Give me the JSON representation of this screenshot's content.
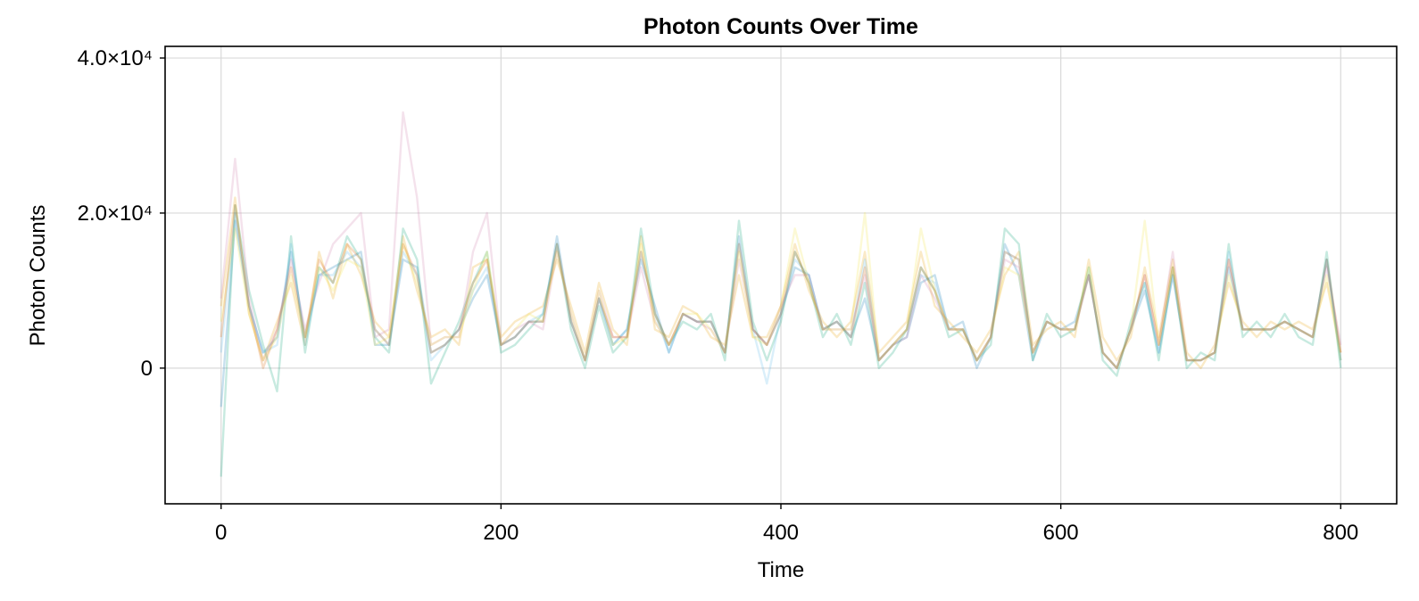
{
  "chart_data": {
    "type": "line",
    "title": "Photon Counts Over Time",
    "xlabel": "Time",
    "ylabel": "Photon Counts",
    "xlim": [
      -40,
      840
    ],
    "ylim": [
      -17500,
      41500
    ],
    "xticks": [
      {
        "value": 0,
        "label": "0"
      },
      {
        "value": 200,
        "label": "200"
      },
      {
        "value": 400,
        "label": "400"
      },
      {
        "value": 600,
        "label": "600"
      },
      {
        "value": 800,
        "label": "800"
      }
    ],
    "yticks": [
      {
        "value": 0,
        "label": "0"
      },
      {
        "value": 20000,
        "label": "2.0×10⁴"
      },
      {
        "value": 40000,
        "label": "4.0×10⁴"
      }
    ],
    "grid": true,
    "legend": "none",
    "series_colors": [
      "#0072b2",
      "#e69f00",
      "#009e73",
      "#cc79a7",
      "#56b4e9",
      "#f0e442",
      "#d55e00"
    ],
    "series_opacity": 0.22,
    "x": [
      0,
      10,
      20,
      30,
      40,
      50,
      60,
      70,
      80,
      90,
      100,
      110,
      120,
      130,
      140,
      150,
      160,
      170,
      180,
      190,
      200,
      210,
      220,
      230,
      240,
      250,
      260,
      270,
      280,
      290,
      300,
      310,
      320,
      330,
      340,
      350,
      360,
      370,
      380,
      390,
      400,
      410,
      420,
      430,
      440,
      450,
      460,
      470,
      480,
      490,
      500,
      510,
      520,
      530,
      540,
      550,
      560,
      570,
      580,
      590,
      600,
      610,
      620,
      630,
      640,
      650,
      660,
      670,
      680,
      690,
      700,
      710,
      720,
      730,
      740,
      750,
      760,
      770,
      780,
      790,
      800
    ],
    "series": [
      {
        "values": [
          -5000,
          19000,
          8000,
          2000,
          4000,
          15000,
          4000,
          12000,
          13000,
          14000,
          15000,
          3000,
          3000,
          14000,
          13000,
          2000,
          3000,
          5000,
          9000,
          12000,
          3000,
          4000,
          6000,
          6000,
          17000,
          6000,
          1000,
          9000,
          3000,
          5000,
          14000,
          8000,
          2000,
          7000,
          6000,
          6000,
          2000,
          17000,
          5000,
          3000,
          7000,
          13000,
          12000,
          5000,
          6000,
          4000,
          9000,
          1000,
          3000,
          4000,
          11000,
          12000,
          5000,
          6000,
          0,
          4000,
          16000,
          12000,
          1000,
          6000,
          5000,
          6000,
          12000,
          2000,
          0,
          5000,
          10000,
          2000,
          12000,
          1000,
          1000,
          2000,
          13000,
          5000,
          5000,
          5000,
          6000,
          5000,
          4000,
          14000,
          1000
        ]
      },
      {
        "values": [
          8000,
          22000,
          7000,
          1000,
          6000,
          11000,
          3000,
          15000,
          9000,
          16000,
          12000,
          6000,
          4000,
          17000,
          10000,
          4000,
          5000,
          3000,
          13000,
          14000,
          4000,
          6000,
          7000,
          8000,
          14000,
          8000,
          2000,
          11000,
          5000,
          3000,
          17000,
          5000,
          4000,
          8000,
          7000,
          4000,
          3000,
          12000,
          4000,
          4000,
          8000,
          16000,
          10000,
          6000,
          4000,
          6000,
          15000,
          2000,
          4000,
          6000,
          15000,
          8000,
          6000,
          4000,
          2000,
          5000,
          12000,
          15000,
          3000,
          5000,
          6000,
          4000,
          14000,
          4000,
          1000,
          4000,
          13000,
          4000,
          14000,
          2000,
          0,
          3000,
          11000,
          6000,
          4000,
          6000,
          5000,
          6000,
          5000,
          11000,
          2000
        ]
      },
      {
        "values": [
          -14000,
          21000,
          10000,
          3000,
          -3000,
          17000,
          2000,
          13000,
          11000,
          17000,
          14000,
          4000,
          2000,
          18000,
          14000,
          -2000,
          2000,
          6000,
          11000,
          15000,
          2000,
          3000,
          5000,
          7000,
          16000,
          5000,
          0,
          8000,
          2000,
          4000,
          18000,
          7000,
          3000,
          6000,
          5000,
          7000,
          1000,
          19000,
          6000,
          1000,
          6000,
          15000,
          11000,
          4000,
          7000,
          3000,
          11000,
          0,
          2000,
          5000,
          13000,
          10000,
          4000,
          5000,
          1000,
          3000,
          18000,
          16000,
          1000,
          7000,
          4000,
          5000,
          13000,
          1000,
          -1000,
          6000,
          11000,
          1000,
          13000,
          0,
          2000,
          1000,
          16000,
          4000,
          6000,
          4000,
          7000,
          4000,
          3000,
          15000,
          0
        ]
      },
      {
        "values": [
          9000,
          27000,
          9000,
          1000,
          5000,
          14000,
          5000,
          11000,
          16000,
          18000,
          20000,
          4000,
          5000,
          33000,
          22000,
          3000,
          4000,
          4000,
          15000,
          20000,
          3000,
          5000,
          6000,
          5000,
          15000,
          7000,
          1000,
          10000,
          4000,
          4000,
          13000,
          6000,
          3000,
          7000,
          6000,
          5000,
          2000,
          14000,
          5000,
          3000,
          8000,
          12000,
          12000,
          5000,
          5000,
          5000,
          12000,
          1000,
          3000,
          4000,
          12000,
          9000,
          5000,
          5000,
          1000,
          4000,
          14000,
          13000,
          2000,
          6000,
          5000,
          5000,
          12000,
          2000,
          0,
          5000,
          12000,
          3000,
          15000,
          1000,
          1000,
          2000,
          14000,
          5000,
          5000,
          5000,
          6000,
          5000,
          4000,
          13000,
          3000
        ]
      },
      {
        "values": [
          2000,
          20000,
          8000,
          2000,
          3000,
          16000,
          3000,
          12000,
          12000,
          15000,
          13000,
          5000,
          3000,
          15000,
          12000,
          1000,
          3000,
          5000,
          10000,
          13000,
          3000,
          4000,
          6000,
          7000,
          16000,
          6000,
          1000,
          9000,
          3000,
          5000,
          15000,
          7000,
          2000,
          7000,
          6000,
          6000,
          2000,
          16000,
          5000,
          -2000,
          7000,
          14000,
          12000,
          5000,
          6000,
          4000,
          14000,
          1000,
          3000,
          5000,
          12000,
          11000,
          5000,
          5000,
          1000,
          4000,
          15000,
          14000,
          2000,
          6000,
          5000,
          5000,
          12000,
          2000,
          0,
          5000,
          11000,
          2000,
          12000,
          1000,
          1000,
          2000,
          15000,
          5000,
          5000,
          5000,
          6000,
          5000,
          4000,
          14000,
          1000
        ]
      },
      {
        "values": [
          6000,
          18000,
          7000,
          1000,
          4000,
          12000,
          4000,
          13000,
          10000,
          14000,
          13000,
          3000,
          4000,
          16000,
          11000,
          3000,
          4000,
          4000,
          10000,
          15000,
          3000,
          5000,
          7000,
          6000,
          15000,
          7000,
          1000,
          10000,
          3000,
          4000,
          16000,
          6000,
          3000,
          7000,
          7000,
          5000,
          2000,
          15000,
          4000,
          3000,
          8000,
          18000,
          11000,
          5000,
          5000,
          5000,
          20000,
          1000,
          3000,
          5000,
          18000,
          10000,
          5000,
          5000,
          1000,
          4000,
          13000,
          12000,
          2000,
          6000,
          5000,
          5000,
          13000,
          2000,
          0,
          5000,
          19000,
          3000,
          13000,
          1000,
          1000,
          2000,
          12000,
          5000,
          5000,
          5000,
          6000,
          5000,
          4000,
          12000,
          1000
        ]
      },
      {
        "values": [
          4000,
          21000,
          8000,
          0,
          5000,
          13000,
          4000,
          14000,
          11000,
          16000,
          14000,
          5000,
          3000,
          16000,
          12000,
          2000,
          3000,
          5000,
          11000,
          14000,
          3000,
          4000,
          6000,
          6000,
          16000,
          6000,
          1000,
          9000,
          4000,
          4000,
          15000,
          7000,
          3000,
          7000,
          6000,
          6000,
          2000,
          16000,
          5000,
          3000,
          7000,
          15000,
          11000,
          5000,
          6000,
          4000,
          13000,
          1000,
          3000,
          5000,
          13000,
          10000,
          5000,
          5000,
          1000,
          4000,
          15000,
          14000,
          2000,
          6000,
          5000,
          5000,
          12000,
          2000,
          0,
          5000,
          12000,
          3000,
          13000,
          1000,
          1000,
          2000,
          14000,
          5000,
          5000,
          5000,
          6000,
          5000,
          4000,
          14000,
          2000
        ]
      }
    ]
  }
}
